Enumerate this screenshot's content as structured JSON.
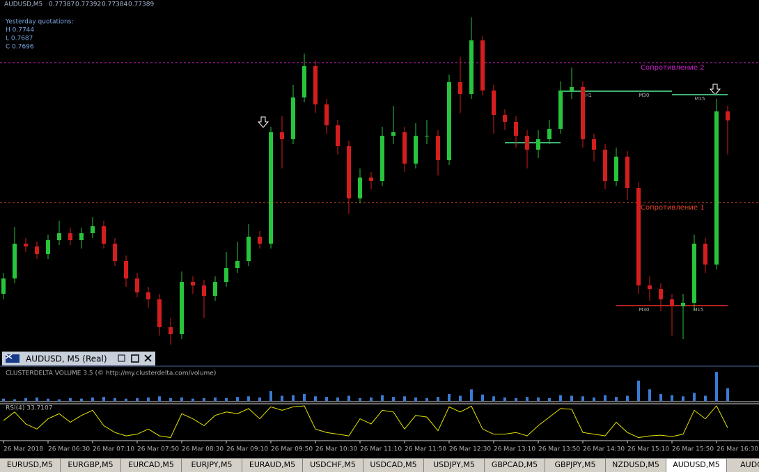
{
  "header": {
    "symbol": "AUDUSD,M5",
    "quotes": [
      0.77387,
      0.77392,
      0.77384,
      0.77389
    ]
  },
  "yesterday": {
    "title": "Yesterday quotations:",
    "lines": [
      "H 0.7744",
      "L 0.7687",
      "C 0.7696"
    ]
  },
  "chart": {
    "type": "candlestick",
    "ylim": [
      0.77037,
      0.7755
    ],
    "up_color": "#27c43c",
    "down_color": "#d41e1e",
    "open": [
      0.7714,
      0.77162,
      0.77212,
      0.77208,
      0.77197,
      0.77217,
      0.77227,
      0.77217,
      0.77227,
      0.77237,
      0.77212,
      0.77187,
      0.77162,
      0.77142,
      0.77132,
      0.77092,
      0.77082,
      0.77157,
      0.77152,
      0.77137,
      0.77157,
      0.77177,
      0.77187,
      0.77222,
      0.77212,
      0.77372,
      0.77362,
      0.77422,
      0.77467,
      0.77412,
      0.77382,
      0.77352,
      0.77277,
      0.77307,
      0.77302,
      0.77367,
      0.77372,
      0.77327,
      0.77367,
      0.77367,
      0.77332,
      0.77444,
      0.77427,
      0.77504,
      0.77432,
      0.77397,
      0.77387,
      0.77367,
      0.77347,
      0.77362,
      0.77377,
      0.77432,
      0.77437,
      0.77362,
      0.77347,
      0.77302,
      0.77337,
      0.77292,
      0.77152,
      0.77147,
      0.77132,
      0.77122,
      0.77127,
      0.77212,
      0.77182,
      0.77402
    ],
    "high": [
      0.7717,
      0.77236,
      0.7722,
      0.77215,
      0.77225,
      0.77245,
      0.77235,
      0.77235,
      0.7725,
      0.77245,
      0.7722,
      0.77195,
      0.7717,
      0.7715,
      0.7714,
      0.77105,
      0.77172,
      0.77165,
      0.7716,
      0.77165,
      0.772,
      0.77215,
      0.7724,
      0.7723,
      0.7738,
      0.77395,
      0.7744,
      0.77485,
      0.77475,
      0.7742,
      0.7739,
      0.7736,
      0.7732,
      0.77315,
      0.7738,
      0.7741,
      0.7738,
      0.77385,
      0.7739,
      0.77375,
      0.77455,
      0.7748,
      0.77537,
      0.7751,
      0.7744,
      0.77405,
      0.77395,
      0.77375,
      0.77375,
      0.7739,
      0.77445,
      0.77465,
      0.77445,
      0.7737,
      0.77355,
      0.7735,
      0.77345,
      0.773,
      0.77165,
      0.77155,
      0.7714,
      0.7714,
      0.77225,
      0.7722,
      0.7742,
      0.7741
    ],
    "low": [
      0.77132,
      0.77155,
      0.772,
      0.7719,
      0.7719,
      0.7721,
      0.7721,
      0.77205,
      0.7722,
      0.77205,
      0.7718,
      0.7715,
      0.77135,
      0.7712,
      0.7708,
      0.77067,
      0.77075,
      0.7714,
      0.77105,
      0.7713,
      0.7715,
      0.7717,
      0.7718,
      0.77205,
      0.77205,
      0.7732,
      0.77355,
      0.77415,
      0.774,
      0.7737,
      0.7734,
      0.77255,
      0.7727,
      0.7729,
      0.77295,
      0.77355,
      0.77315,
      0.7732,
      0.77355,
      0.7731,
      0.77325,
      0.774,
      0.7742,
      0.77425,
      0.7737,
      0.77375,
      0.7735,
      0.7732,
      0.77335,
      0.77355,
      0.7737,
      0.7742,
      0.7735,
      0.7733,
      0.7729,
      0.77295,
      0.77275,
      0.7714,
      0.7713,
      0.77115,
      0.7708,
      0.77075,
      0.77115,
      0.7717,
      0.77175,
      0.7734
    ],
    "close": [
      0.77162,
      0.77212,
      0.77208,
      0.77197,
      0.77217,
      0.77227,
      0.77217,
      0.77227,
      0.77237,
      0.77212,
      0.77187,
      0.77162,
      0.77142,
      0.77132,
      0.77092,
      0.77082,
      0.77157,
      0.77152,
      0.77137,
      0.77157,
      0.77177,
      0.77187,
      0.77222,
      0.77212,
      0.77372,
      0.77362,
      0.77422,
      0.77467,
      0.77412,
      0.77382,
      0.77352,
      0.77277,
      0.77307,
      0.77302,
      0.77367,
      0.77372,
      0.77327,
      0.77367,
      0.77367,
      0.77332,
      0.77444,
      0.77427,
      0.77504,
      0.77432,
      0.77397,
      0.77387,
      0.77367,
      0.77347,
      0.77362,
      0.77377,
      0.77432,
      0.77437,
      0.77362,
      0.77347,
      0.77302,
      0.77337,
      0.77292,
      0.77152,
      0.77147,
      0.77132,
      0.77122,
      0.77127,
      0.77212,
      0.77182,
      0.77402,
      0.77389
    ],
    "resistances": [
      {
        "label": "Сопротивление 2",
        "price": 0.77472,
        "color": "#d21fd2"
      },
      {
        "label": "Сопротивление 1",
        "price": 0.77271,
        "color": "#e0452a"
      }
    ],
    "zones": [
      {
        "label": "H1",
        "price": 0.77431,
        "color": "#3cb371"
      },
      {
        "label": "M30",
        "price": 0.77431,
        "color": "#3cb371"
      },
      {
        "label": "M15",
        "price": 0.77426,
        "color": "#3cb371"
      },
      {
        "label": null,
        "price": 0.77357,
        "color": "#3cb371"
      },
      {
        "label": "M30",
        "price": 0.77123,
        "color": "#b22222"
      },
      {
        "label": "M15",
        "price": 0.77123,
        "color": "#b22222"
      }
    ]
  },
  "window_bar": {
    "title": "AUDUSD, M5 (Real)"
  },
  "volume": {
    "label": "CLUSTERDELTA VOLUME 3.5 (© http://my.clusterdelta.com/volume)",
    "color": "#3a7bd5",
    "ylim": [
      0,
      55
    ],
    "values": [
      4,
      3,
      5,
      6,
      4,
      3,
      5,
      4,
      6,
      7,
      5,
      4,
      5,
      6,
      8,
      5,
      6,
      4,
      5,
      6,
      5,
      7,
      8,
      6,
      17,
      9,
      10,
      12,
      8,
      7,
      6,
      9,
      5,
      6,
      10,
      7,
      8,
      6,
      5,
      7,
      12,
      9,
      20,
      11,
      8,
      6,
      5,
      7,
      6,
      5,
      10,
      9,
      8,
      6,
      10,
      7,
      9,
      35,
      20,
      12,
      10,
      8,
      14,
      9,
      50,
      22
    ]
  },
  "rsi": {
    "label": "RSI(4) 33.7107",
    "color": "#e6e600",
    "ylim": [
      0,
      100
    ],
    "values": [
      55,
      80,
      45,
      30,
      60,
      75,
      50,
      70,
      85,
      40,
      20,
      10,
      15,
      30,
      10,
      5,
      75,
      60,
      40,
      70,
      80,
      75,
      90,
      60,
      95,
      85,
      95,
      98,
      30,
      20,
      15,
      10,
      60,
      45,
      85,
      80,
      30,
      70,
      65,
      25,
      95,
      80,
      97,
      30,
      15,
      15,
      20,
      10,
      40,
      65,
      90,
      88,
      20,
      15,
      10,
      50,
      20,
      5,
      10,
      12,
      8,
      15,
      85,
      60,
      98,
      33.7107
    ]
  },
  "time_axis": [
    "26 Mar 2018",
    "26 Mar 06:30",
    "26 Mar 07:10",
    "26 Mar 07:50",
    "26 Mar 08:30",
    "26 Mar 09:10",
    "26 Mar 09:50",
    "26 Mar 10:30",
    "26 Mar 11:10",
    "26 Mar 11:50",
    "26 Mar 12:30",
    "26 Mar 13:10",
    "26 Mar 13:50",
    "26 Mar 14:30",
    "26 Mar 15:10",
    "26 Mar 15:50",
    "26 Mar 16:30"
  ],
  "tabs": {
    "items": [
      "EURUSD,M5",
      "EURGBP,M5",
      "EURCAD,M5",
      "EURJPY,M5",
      "EURAUD,M5",
      "USDCHF,M5",
      "USDCAD,M5",
      "USDJPY,M5",
      "GBPCAD,M5",
      "GBPJPY,M5",
      "NZDUSD,M5",
      "AUDUSD,M5",
      "AUDCAD"
    ],
    "active": 11
  }
}
